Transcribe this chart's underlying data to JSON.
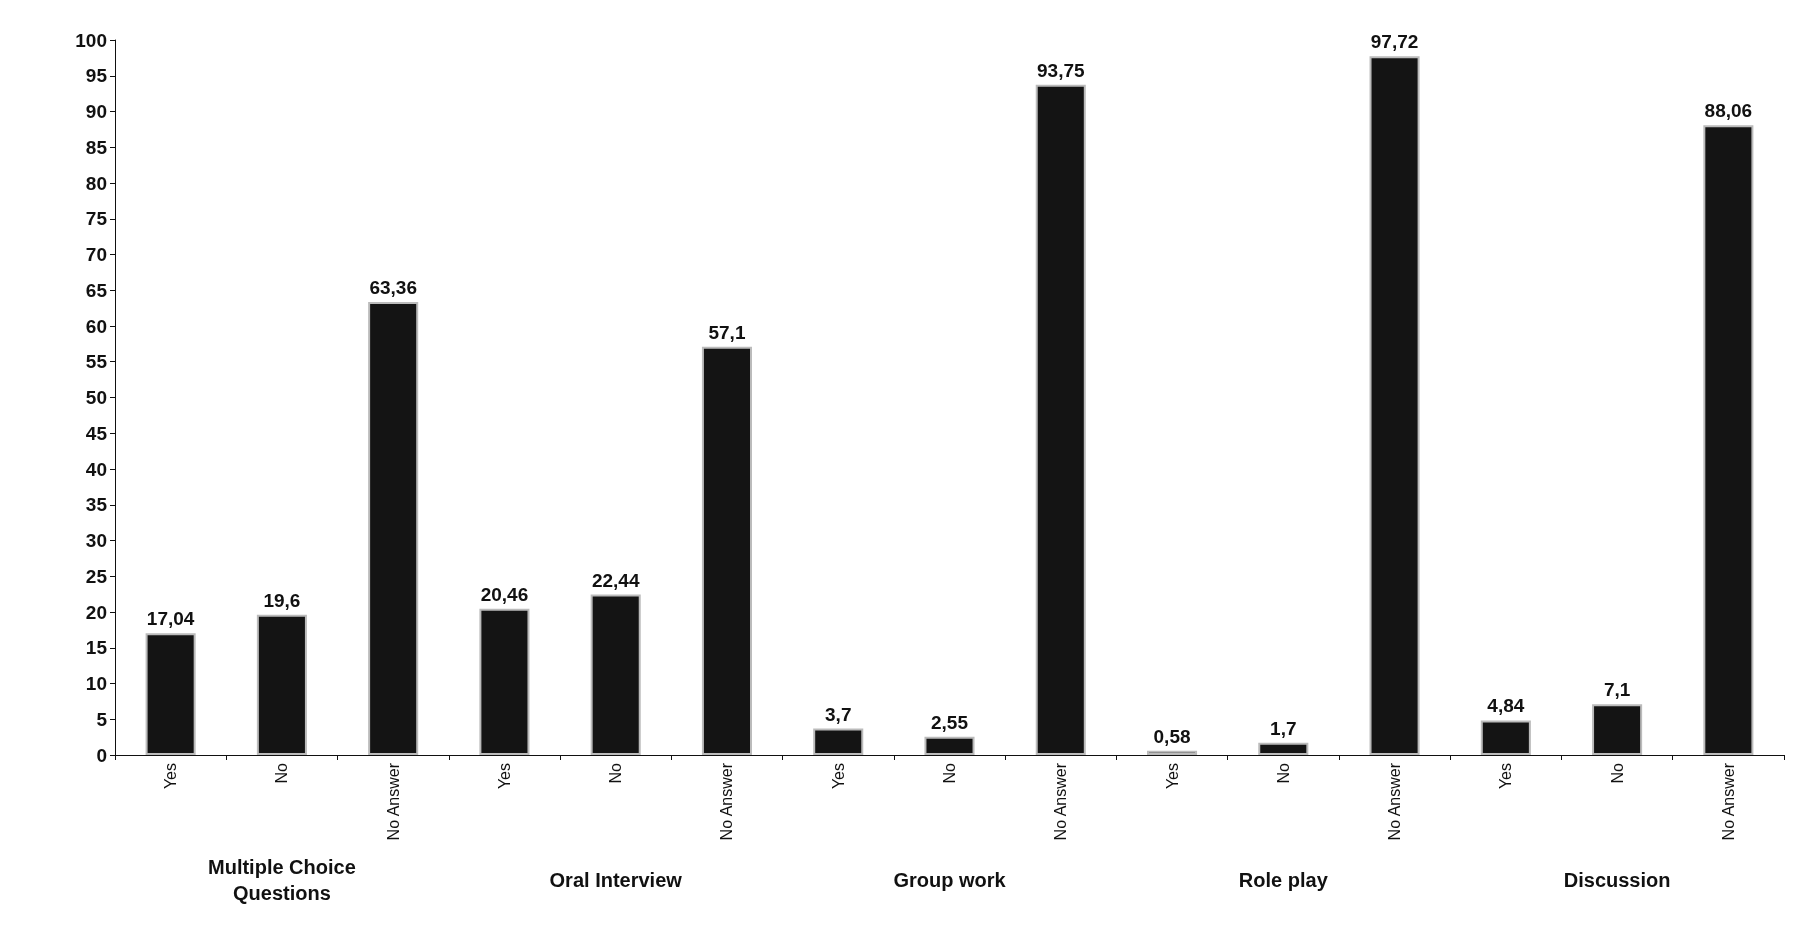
{
  "chart_data": {
    "type": "bar",
    "categories": [
      "Yes",
      "No",
      "No Answer",
      "Yes",
      "No",
      "No Answer",
      "Yes",
      "No",
      "No Answer",
      "Yes",
      "No",
      "No Answer",
      "Yes",
      "No",
      "No Answer"
    ],
    "values": [
      17.04,
      19.6,
      63.36,
      20.46,
      22.44,
      57.1,
      3.7,
      2.55,
      93.75,
      0.58,
      1.7,
      97.72,
      4.84,
      7.1,
      88.06
    ],
    "value_labels": [
      "17,04",
      "19,6",
      "63,36",
      "20,46",
      "22,44",
      "57,1",
      "3,7",
      "2,55",
      "93,75",
      "0,58",
      "1,7",
      "97,72",
      "4,84",
      "7,1",
      "88,06"
    ],
    "color": "#141414",
    "ylim": [
      0,
      100
    ],
    "yticks": [
      0,
      5,
      10,
      15,
      20,
      25,
      30,
      35,
      40,
      45,
      50,
      55,
      60,
      65,
      70,
      75,
      80,
      85,
      90,
      95,
      100
    ],
    "grid": false,
    "annotations": [
      "Multiple Choice\nQuestions",
      "Oral Interview",
      "Group work",
      "Role play",
      "Discussion"
    ]
  }
}
